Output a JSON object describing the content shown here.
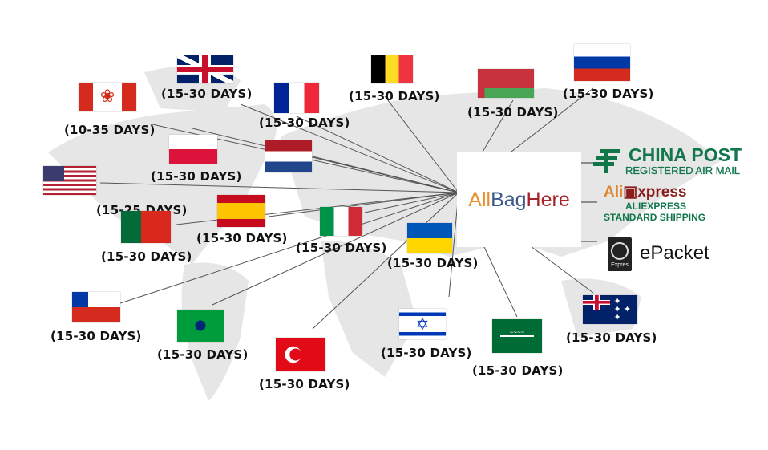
{
  "hub": {
    "logo_parts": [
      "All",
      "Bag",
      "Here"
    ],
    "logo_colors": [
      "#e8902a",
      "#3c5a8a",
      "#a8222a"
    ]
  },
  "shipping": {
    "china_post": {
      "title": "CHINA POST",
      "subtitle": "REGISTERED AIR MAIL",
      "color": "#11774b"
    },
    "aliexpress": {
      "logo_a": "Ali",
      "logo_b": "xpress",
      "line1": "ALIEXPRESS",
      "line2": "STANDARD SHIPPING"
    },
    "epacket": {
      "badge": "Expres",
      "title": "ePacket"
    }
  },
  "countries": [
    {
      "id": "uk",
      "label": "(15-30 DAYS)"
    },
    {
      "id": "canada",
      "label": "(10-35 DAYS)"
    },
    {
      "id": "france",
      "label": "(15-30 DAYS)"
    },
    {
      "id": "belgium",
      "label": "(15-30 DAYS)"
    },
    {
      "id": "belarus",
      "label": "(15-30 DAYS)"
    },
    {
      "id": "russia",
      "label": "(15-30 DAYS)"
    },
    {
      "id": "netherlands",
      "label": ""
    },
    {
      "id": "poland",
      "label": "(15-30 DAYS)"
    },
    {
      "id": "usa",
      "label": "(15-25 DAYS)"
    },
    {
      "id": "portugal",
      "label": "(15-30 DAYS)"
    },
    {
      "id": "spain",
      "label": "(15-30 DAYS)"
    },
    {
      "id": "italy",
      "label": "(15-30 DAYS)"
    },
    {
      "id": "ukraine",
      "label": "(15-30 DAYS)"
    },
    {
      "id": "chile",
      "label": "(15-30 DAYS)"
    },
    {
      "id": "brazil",
      "label": "(15-30 DAYS)"
    },
    {
      "id": "turkey",
      "label": "(15-30 DAYS)"
    },
    {
      "id": "israel",
      "label": "(15-30 DAYS)"
    },
    {
      "id": "saudi-arabia",
      "label": "(15-30 DAYS)"
    },
    {
      "id": "australia",
      "label": "(15-30 DAYS)"
    }
  ]
}
